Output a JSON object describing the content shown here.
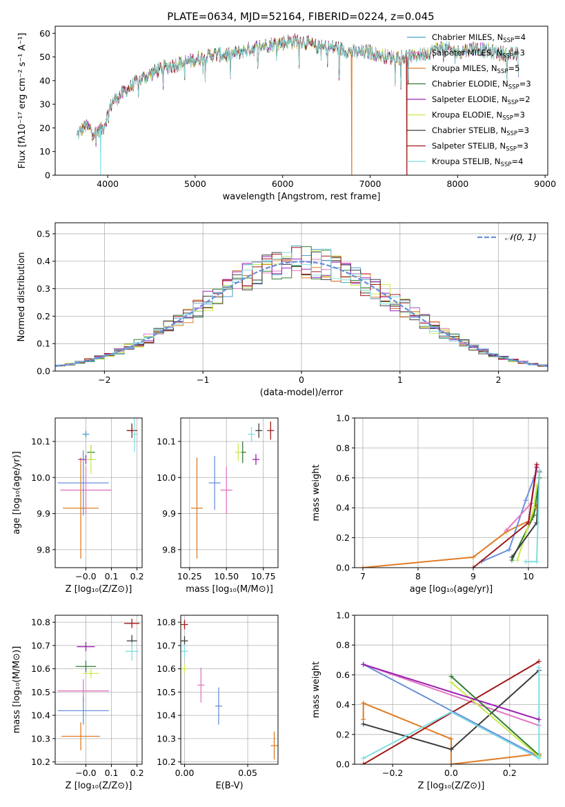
{
  "figure_title": "PLATE=0634, MJD=52164, FIBERID=0224, z=0.045",
  "colors": {
    "chab_miles": "#4c9ec9",
    "salp_miles": "#e377c2",
    "krou_miles": "#e07b24",
    "chab_elodie": "#2f7d34",
    "salp_elodie": "#9b20b3",
    "krou_elodie": "#c9e94e",
    "chab_stelib": "#3c3c3c",
    "salp_stelib": "#a01818",
    "krou_stelib": "#7fdde2",
    "normal": "#6a8fdc",
    "grid": "#b0b0b0"
  },
  "chart_data": [
    {
      "id": "spectrum",
      "type": "line",
      "xlabel": "wavelength [Angstrom, rest frame]",
      "ylabel": "Flux [fλ10⁻¹⁷ erg cm⁻² s⁻¹ A⁻¹]",
      "xlim": [
        3400,
        9030
      ],
      "ylim": [
        0,
        63
      ],
      "xticks": [
        4000,
        5000,
        6000,
        7000,
        8000,
        9000
      ],
      "yticks": [
        0,
        10,
        20,
        30,
        40,
        50,
        60
      ],
      "grid": false,
      "legend": "top-right",
      "series": [
        {
          "name": "Chabrier MILES, N_SSP=4",
          "key": "chab_miles"
        },
        {
          "name": "Salpeter MILES, N_SSP=3",
          "key": "salp_miles"
        },
        {
          "name": "Kroupa MILES, N_SSP=5",
          "key": "krou_miles"
        },
        {
          "name": "Chabrier ELODIE, N_SSP=3",
          "key": "chab_elodie"
        },
        {
          "name": "Salpeter ELODIE, N_SSP=2",
          "key": "salp_elodie"
        },
        {
          "name": "Kroupa ELODIE, N_SSP=3",
          "key": "krou_elodie"
        },
        {
          "name": "Chabrier STELIB, N_SSP=3",
          "key": "chab_stelib"
        },
        {
          "name": "Salpeter STELIB, N_SSP=3",
          "key": "salp_stelib"
        },
        {
          "name": "Kroupa STELIB, N_SSP=4",
          "key": "krou_stelib"
        }
      ],
      "continuum": {
        "x": [
          3650,
          3750,
          3850,
          3950,
          4050,
          4150,
          4250,
          4350,
          4450,
          4600,
          4800,
          5000,
          5200,
          5400,
          5600,
          5800,
          6000,
          6200,
          6400,
          6600,
          6800,
          7000,
          7200,
          7400,
          7600,
          7800,
          8000,
          8200,
          8400,
          8600,
          8700
        ],
        "y": [
          17,
          21,
          18,
          20,
          31,
          34,
          37,
          40,
          42,
          45,
          47,
          49,
          51,
          51,
          53,
          55,
          56,
          57,
          54,
          54,
          52,
          52,
          50,
          50,
          51,
          54,
          52,
          54,
          52,
          51,
          51
        ]
      },
      "drops": [
        {
          "key": "krou_stelib",
          "x": 3920
        },
        {
          "key": "krou_miles",
          "x": 6790
        },
        {
          "key": "salp_stelib",
          "x": 7420
        }
      ]
    },
    {
      "id": "residuals",
      "type": "histogram",
      "xlabel": "(data-model)/error",
      "ylabel": "Normed distribution",
      "xlim": [
        -2.5,
        2.5
      ],
      "ylim": [
        0,
        0.54
      ],
      "xticks": [
        -2,
        -1,
        0,
        1,
        2
      ],
      "yticks": [
        0.0,
        0.1,
        0.2,
        0.3,
        0.4,
        0.5
      ],
      "grid": true,
      "legend": "top-right",
      "reference_curve": {
        "name": "𝒩(0, 1)",
        "style": "dashed"
      },
      "bin_width": 0.1
    },
    {
      "id": "age_vs_Z",
      "type": "scatter",
      "xlabel": "Z [log₁₀(Z/Z⊙)]",
      "ylabel": "age  [log₁₀(age/yr)]",
      "xlim": [
        -0.12,
        0.22
      ],
      "ylim": [
        9.75,
        10.165
      ],
      "xticks": [
        -0.0,
        0.1,
        0.2
      ],
      "xticklabels": [
        "−0.0",
        "0.1",
        "0.2"
      ],
      "yticks": [
        9.8,
        9.9,
        10.0,
        10.1
      ],
      "grid": true,
      "points": [
        {
          "key": "chab_miles",
          "x": 0.0,
          "y": 10.12,
          "xerr": 0.0,
          "yerr": 0.0
        },
        {
          "key": "salp_miles",
          "x": -0.0,
          "y": 9.965,
          "xerr": 0.1,
          "yerr": 0.065
        },
        {
          "key": "krou_miles",
          "x": -0.02,
          "y": 9.915,
          "xerr": 0.07,
          "yerr": 0.14
        },
        {
          "key": "chab_elodie",
          "x": 0.02,
          "y": 10.07,
          "xerr": 0.015,
          "yerr": 0.02
        },
        {
          "key": "salp_elodie",
          "x": 0.0,
          "y": 10.05,
          "xerr": 0.03,
          "yerr": 0.012
        },
        {
          "key": "krou_elodie",
          "x": 0.02,
          "y": 10.05,
          "xerr": 0.02,
          "yerr": 0.04
        },
        {
          "key": "chab_stelib",
          "x": 0.18,
          "y": 10.13,
          "xerr": 0.02,
          "yerr": 0.02
        },
        {
          "key": "salp_stelib",
          "x": 0.18,
          "y": 10.13,
          "xerr": 0.02,
          "yerr": 0.015
        },
        {
          "key": "krou_stelib",
          "x": 0.19,
          "y": 10.12,
          "xerr": 0.01,
          "yerr": 0.05
        },
        {
          "key": "normal",
          "x": -0.01,
          "y": 9.985,
          "xerr": 0.1,
          "yerr": 0.09
        }
      ]
    },
    {
      "id": "age_vs_mass",
      "type": "scatter",
      "xlabel": "mass [log₁₀(M/M⊙)]",
      "ylabel": "",
      "xlim": [
        10.19,
        10.85
      ],
      "ylim": [
        9.75,
        10.165
      ],
      "xticks": [
        10.25,
        10.5,
        10.75
      ],
      "yticks": [
        9.8,
        9.9,
        10.0,
        10.1
      ],
      "grid": true,
      "points": [
        {
          "key": "salp_miles",
          "x": 10.5,
          "y": 9.965,
          "xerr": 0.04,
          "yerr": 0.065
        },
        {
          "key": "krou_miles",
          "x": 10.3,
          "y": 9.915,
          "xerr": 0.04,
          "yerr": 0.14
        },
        {
          "key": "normal",
          "x": 10.42,
          "y": 9.985,
          "xerr": 0.04,
          "yerr": 0.075
        },
        {
          "key": "chab_elodie",
          "x": 10.61,
          "y": 10.07,
          "xerr": 0.02,
          "yerr": 0.03
        },
        {
          "key": "krou_elodie",
          "x": 10.58,
          "y": 10.07,
          "xerr": 0.01,
          "yerr": 0.025
        },
        {
          "key": "salp_elodie",
          "x": 10.7,
          "y": 10.05,
          "xerr": 0.02,
          "yerr": 0.015
        },
        {
          "key": "krou_stelib",
          "x": 10.67,
          "y": 10.12,
          "xerr": 0.01,
          "yerr": 0.02
        },
        {
          "key": "chab_stelib",
          "x": 10.72,
          "y": 10.13,
          "xerr": 0.02,
          "yerr": 0.02
        },
        {
          "key": "salp_stelib",
          "x": 10.8,
          "y": 10.13,
          "xerr": 0.01,
          "yerr": 0.025
        }
      ]
    },
    {
      "id": "mass_weight_vs_age",
      "type": "line",
      "xlabel": "age  [log₁₀(age/yr)]",
      "ylabel": "mass weight",
      "xlim": [
        6.85,
        10.35
      ],
      "ylim": [
        0,
        1.0
      ],
      "xticks": [
        7,
        8,
        9,
        10
      ],
      "yticks": [
        0.0,
        0.2,
        0.4,
        0.6,
        0.8,
        1.0
      ],
      "grid": true,
      "series": [
        {
          "key": "krou_miles",
          "x": [
            7.0,
            9.0,
            9.6,
            10.05,
            10.15
          ],
          "y": [
            0.0,
            0.07,
            0.24,
            0.32,
            0.41
          ]
        },
        {
          "key": "normal",
          "x": [
            9.15,
            9.65,
            9.95,
            10.1
          ],
          "y": [
            0.04,
            0.12,
            0.45,
            0.6
          ]
        },
        {
          "key": "salp_miles",
          "x": [
            9.6,
            10.05,
            10.15
          ],
          "y": [
            0.25,
            0.43,
            0.68
          ]
        },
        {
          "key": "chab_elodie",
          "x": [
            9.7,
            10.1,
            10.2
          ],
          "y": [
            0.05,
            0.35,
            0.6
          ]
        },
        {
          "key": "krou_elodie",
          "x": [
            9.8,
            10.1,
            10.15
          ],
          "y": [
            0.05,
            0.4,
            0.55
          ]
        },
        {
          "key": "salp_elodie",
          "x": [
            10.0,
            10.15
          ],
          "y": [
            0.3,
            0.67
          ]
        },
        {
          "key": "chab_stelib",
          "x": [
            9.7,
            10.15,
            10.2
          ],
          "y": [
            0.07,
            0.3,
            0.64
          ]
        },
        {
          "key": "salp_stelib",
          "x": [
            9.0,
            10.0,
            10.15
          ],
          "y": [
            0.0,
            0.3,
            0.69
          ]
        },
        {
          "key": "krou_stelib",
          "x": [
            9.95,
            10.15,
            10.2
          ],
          "y": [
            0.04,
            0.04,
            0.65
          ]
        }
      ]
    },
    {
      "id": "mass_vs_Z",
      "type": "scatter",
      "xlabel": "Z [log₁₀(Z/Z⊙)]",
      "ylabel": "mass [log₁₀(M/M⊙)]",
      "xlim": [
        -0.12,
        0.22
      ],
      "ylim": [
        10.19,
        10.83
      ],
      "xticks": [
        -0.0,
        0.1,
        0.2
      ],
      "xticklabels": [
        "−0.0",
        "0.1",
        "0.2"
      ],
      "yticks": [
        10.2,
        10.3,
        10.4,
        10.5,
        10.6,
        10.7,
        10.8
      ],
      "grid": true,
      "points": [
        {
          "key": "salp_stelib",
          "x": 0.18,
          "y": 10.795,
          "xerr": 0.03,
          "yerr": 0.02
        },
        {
          "key": "chab_stelib",
          "x": 0.18,
          "y": 10.72,
          "xerr": 0.02,
          "yerr": 0.025
        },
        {
          "key": "krou_stelib",
          "x": 0.18,
          "y": 10.675,
          "xerr": 0.025,
          "yerr": 0.04
        },
        {
          "key": "salp_elodie",
          "x": 0.0,
          "y": 10.695,
          "xerr": 0.035,
          "yerr": 0.02
        },
        {
          "key": "chab_elodie",
          "x": 0.0,
          "y": 10.61,
          "xerr": 0.04,
          "yerr": 0.025
        },
        {
          "key": "krou_elodie",
          "x": 0.02,
          "y": 10.58,
          "xerr": 0.03,
          "yerr": 0.02
        },
        {
          "key": "salp_miles",
          "x": -0.01,
          "y": 10.505,
          "xerr": 0.1,
          "yerr": 0.05
        },
        {
          "key": "normal",
          "x": -0.01,
          "y": 10.42,
          "xerr": 0.1,
          "yerr": 0.06
        },
        {
          "key": "krou_miles",
          "x": -0.02,
          "y": 10.31,
          "xerr": 0.075,
          "yerr": 0.06
        }
      ]
    },
    {
      "id": "mass_vs_ebv",
      "type": "scatter",
      "xlabel": "E(B-V)",
      "ylabel": "",
      "xlim": [
        -0.003,
        0.074
      ],
      "ylim": [
        10.19,
        10.83
      ],
      "xticks": [
        0.0,
        0.05
      ],
      "xticklabels": [
        "0.00",
        "0.05"
      ],
      "yticks": [
        10.2,
        10.3,
        10.4,
        10.5,
        10.6,
        10.7,
        10.8
      ],
      "grid": true,
      "points": [
        {
          "key": "salp_stelib",
          "x": 0.0,
          "y": 10.79,
          "xerr": 0.0,
          "yerr": 0.02
        },
        {
          "key": "chab_stelib",
          "x": 0.0,
          "y": 10.72,
          "xerr": 0.0,
          "yerr": 0.02
        },
        {
          "key": "krou_stelib",
          "x": 0.0,
          "y": 10.675,
          "xerr": 0.0,
          "yerr": 0.03
        },
        {
          "key": "krou_elodie",
          "x": 0.0,
          "y": 10.6,
          "xerr": 0.0,
          "yerr": 0.02
        },
        {
          "key": "salp_miles",
          "x": 0.013,
          "y": 10.53,
          "xerr": 0.0,
          "yerr": 0.075
        },
        {
          "key": "normal",
          "x": 0.027,
          "y": 10.44,
          "xerr": 0.0,
          "yerr": 0.08
        },
        {
          "key": "krou_miles",
          "x": 0.071,
          "y": 10.27,
          "xerr": 0.0,
          "yerr": 0.06
        }
      ]
    },
    {
      "id": "mass_weight_vs_Z",
      "type": "line",
      "xlabel": "Z [log₁₀(Z/Z⊙)]",
      "ylabel": "mass weight",
      "xlim": [
        -0.33,
        0.33
      ],
      "ylim": [
        0,
        1.0
      ],
      "xticks": [
        -0.2,
        0.0,
        0.2
      ],
      "xticklabels": [
        "−0.2",
        "0.0",
        "0.2"
      ],
      "yticks": [
        0.0,
        0.2,
        0.4,
        0.6,
        0.8,
        1.0
      ],
      "grid": true,
      "series": [
        {
          "key": "salp_miles",
          "x": [
            -0.3,
            0.3
          ],
          "y": [
            0.67,
            0.26
          ]
        },
        {
          "key": "normal",
          "x": [
            -0.3,
            0.3
          ],
          "y": [
            0.67,
            0.05
          ]
        },
        {
          "key": "krou_miles",
          "x": [
            -0.3,
            -0.3,
            0.0,
            0.0,
            0.3
          ],
          "y": [
            0.3,
            0.41,
            0.17,
            0.0,
            0.07
          ]
        },
        {
          "key": "chab_stelib",
          "x": [
            -0.3,
            0.0,
            0.3
          ],
          "y": [
            0.27,
            0.1,
            0.63
          ]
        },
        {
          "key": "salp_stelib",
          "x": [
            -0.3,
            0.3
          ],
          "y": [
            0.0,
            0.69
          ]
        },
        {
          "key": "chab_elodie",
          "x": [
            0.0,
            0.3
          ],
          "y": [
            0.59,
            0.06
          ]
        },
        {
          "key": "krou_elodie",
          "x": [
            0.0,
            0.3
          ],
          "y": [
            0.55,
            0.05
          ]
        },
        {
          "key": "krou_stelib",
          "x": [
            -0.3,
            0.0,
            0.3,
            0.3
          ],
          "y": [
            0.04,
            0.35,
            0.04,
            0.65
          ]
        },
        {
          "key": "salp_elodie",
          "x": [
            -0.3,
            0.3
          ],
          "y": [
            0.67,
            0.3
          ]
        }
      ]
    }
  ]
}
